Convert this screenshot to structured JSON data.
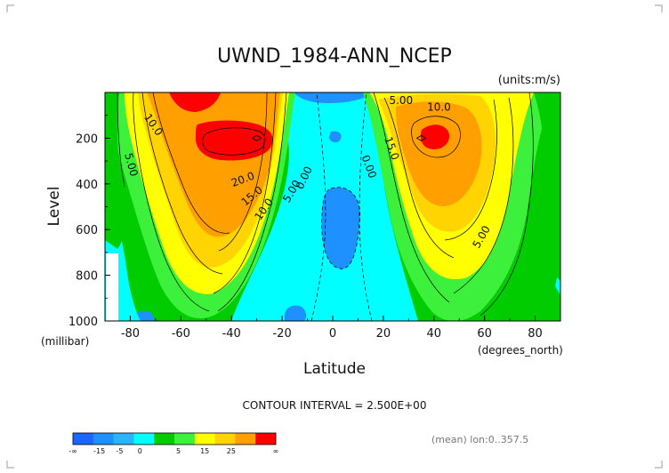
{
  "chart_data": {
    "type": "heatmap",
    "title": "UWND_1984-ANN_NCEP",
    "units_label": "(units:m/s)",
    "xlabel": "Latitude",
    "ylabel": "Level",
    "x_units": "(degrees_north)",
    "y_units": "(millibar)",
    "xlim": [
      -90,
      90
    ],
    "ylim": [
      1000,
      0
    ],
    "x_ticks": [
      -80,
      -60,
      -40,
      -20,
      0,
      20,
      40,
      60,
      80
    ],
    "y_ticks": [
      200,
      400,
      600,
      800,
      1000
    ],
    "contour_interval_text": "CONTOUR INTERVAL = 2.500E+00",
    "contour_labels": [
      {
        "text": "10.0",
        "lat": -72,
        "level": 150,
        "angle": 55
      },
      {
        "text": "5.00",
        "lat": -81,
        "level": 320,
        "angle": 75
      },
      {
        "text": "20.0",
        "lat": -35,
        "level": 395,
        "angle": -20
      },
      {
        "text": "15.0",
        "lat": -31,
        "level": 465,
        "angle": -40
      },
      {
        "text": "10.0",
        "lat": -26,
        "level": 520,
        "angle": -55
      },
      {
        "text": "5.00",
        "lat": -15,
        "level": 440,
        "angle": -60
      },
      {
        "text": "0.00",
        "lat": -10,
        "level": 380,
        "angle": -65
      },
      {
        "text": "0.00",
        "lat": 13,
        "level": 330,
        "angle": 70
      },
      {
        "text": "15.0",
        "lat": 22,
        "level": 250,
        "angle": 70
      },
      {
        "text": "5.00",
        "lat": 27,
        "level": 50,
        "angle": 0
      },
      {
        "text": "10.0",
        "lat": 42,
        "level": 80,
        "angle": 0
      },
      {
        "text": "5.00",
        "lat": 60,
        "level": 640,
        "angle": -60
      }
    ],
    "jets": [
      {
        "lat": -30,
        "level": 200,
        "value": 30
      },
      {
        "lat": 35,
        "level": 200,
        "value": 27
      }
    ],
    "colorbar": {
      "levels": [
        "-∞",
        "-15",
        "-5",
        "0",
        "5",
        "15",
        "25",
        "∞"
      ],
      "colors": [
        "#1a66ff",
        "#1e90ff",
        "#2ab3ff",
        "#00ffff",
        "#00cc00",
        "#3cf03c",
        "#ffff00",
        "#ffd400",
        "#ffa000",
        "#ff0000"
      ]
    },
    "grid": false,
    "legend": "bottom"
  },
  "footer": {
    "stats": "(mean) lon:0..357.5"
  }
}
